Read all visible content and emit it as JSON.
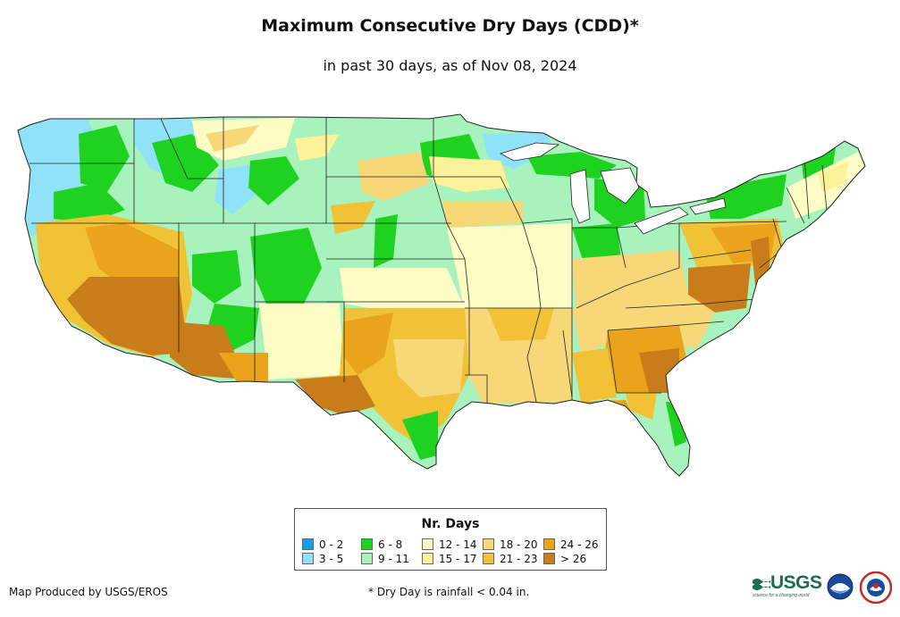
{
  "title": "Maximum Consecutive Dry Days (CDD)*",
  "subtitle": "in past 30 days, as of Nov 08, 2024",
  "legend": {
    "title": "Nr. Days",
    "items": [
      {
        "label": "0 - 2",
        "color": "#1a9cf0"
      },
      {
        "label": "3 - 5",
        "color": "#8fe2f9"
      },
      {
        "label": "6 - 8",
        "color": "#1fd21f"
      },
      {
        "label": "9 - 11",
        "color": "#a8f2be"
      },
      {
        "label": "12 - 14",
        "color": "#fdfcc4"
      },
      {
        "label": "15 - 17",
        "color": "#fcf29a"
      },
      {
        "label": "18 - 20",
        "color": "#f7d778"
      },
      {
        "label": "21 - 23",
        "color": "#f1c236"
      },
      {
        "label": "24 - 26",
        "color": "#eaa31c"
      },
      {
        "label": "> 26",
        "color": "#c97c1a"
      }
    ]
  },
  "credit": "Map Produced by USGS/EROS",
  "footnote": "* Dry Day is rainfall < 0.04 in.",
  "logos": {
    "usgs": "USGS",
    "usgs_tag": "science for a changing world",
    "noaa": "noaa-logo",
    "nws": "nws-logo"
  },
  "map": {
    "region": "contiguous-united-states",
    "palette": {
      "border": "#222222",
      "water": "#ffffff"
    }
  }
}
